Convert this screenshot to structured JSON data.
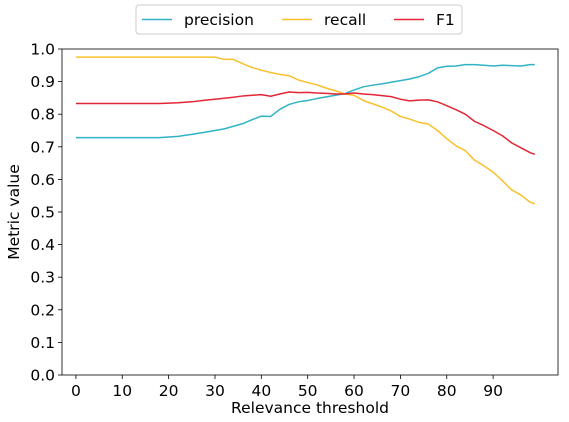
{
  "chart_data": {
    "type": "line",
    "title": "",
    "xlabel": "Relevance threshold",
    "ylabel": "Metric value",
    "xlim": [
      -3,
      104
    ],
    "ylim": [
      0.0,
      1.0
    ],
    "xticks": [
      0,
      10,
      20,
      30,
      40,
      50,
      60,
      70,
      80,
      90
    ],
    "xtick_labels": [
      "0",
      "10",
      "20",
      "30",
      "40",
      "50",
      "60",
      "70",
      "80",
      "90"
    ],
    "yticks": [
      0.0,
      0.1,
      0.2,
      0.3,
      0.4,
      0.5,
      0.6,
      0.7,
      0.8,
      0.9,
      1.0
    ],
    "ytick_labels": [
      "0.0",
      "0.1",
      "0.2",
      "0.3",
      "0.4",
      "0.5",
      "0.6",
      "0.7",
      "0.8",
      "0.9",
      "1.0"
    ],
    "grid": false,
    "legend_position": "top-center",
    "x": [
      0,
      5,
      10,
      15,
      18,
      20,
      22,
      25,
      28,
      30,
      32,
      34,
      36,
      38,
      40,
      42,
      44,
      46,
      48,
      50,
      52,
      54,
      56,
      58,
      60,
      62,
      64,
      66,
      68,
      70,
      72,
      74,
      76,
      78,
      80,
      82,
      84,
      86,
      88,
      90,
      92,
      94,
      96,
      98,
      99
    ],
    "series": [
      {
        "name": "precision",
        "color": "#30b3c6",
        "values": [
          0.728,
          0.728,
          0.728,
          0.728,
          0.728,
          0.73,
          0.732,
          0.738,
          0.745,
          0.75,
          0.755,
          0.763,
          0.771,
          0.783,
          0.794,
          0.793,
          0.815,
          0.83,
          0.838,
          0.842,
          0.848,
          0.853,
          0.858,
          0.863,
          0.874,
          0.884,
          0.889,
          0.893,
          0.898,
          0.903,
          0.908,
          0.915,
          0.925,
          0.942,
          0.947,
          0.948,
          0.952,
          0.952,
          0.95,
          0.948,
          0.95,
          0.949,
          0.948,
          0.952,
          0.952
        ]
      },
      {
        "name": "recall",
        "color": "#fbc02d",
        "values": [
          0.975,
          0.975,
          0.975,
          0.975,
          0.975,
          0.975,
          0.975,
          0.975,
          0.975,
          0.975,
          0.968,
          0.968,
          0.955,
          0.943,
          0.935,
          0.928,
          0.922,
          0.918,
          0.905,
          0.897,
          0.89,
          0.88,
          0.872,
          0.862,
          0.858,
          0.842,
          0.832,
          0.822,
          0.81,
          0.793,
          0.785,
          0.775,
          0.77,
          0.75,
          0.725,
          0.703,
          0.688,
          0.659,
          0.642,
          0.622,
          0.596,
          0.568,
          0.552,
          0.53,
          0.525
        ]
      },
      {
        "name": "F1",
        "color": "#e32636",
        "values": [
          0.833,
          0.833,
          0.833,
          0.833,
          0.833,
          0.834,
          0.835,
          0.838,
          0.843,
          0.846,
          0.849,
          0.852,
          0.856,
          0.858,
          0.86,
          0.855,
          0.862,
          0.868,
          0.866,
          0.867,
          0.865,
          0.864,
          0.862,
          0.862,
          0.865,
          0.862,
          0.86,
          0.857,
          0.854,
          0.846,
          0.841,
          0.843,
          0.844,
          0.838,
          0.826,
          0.814,
          0.8,
          0.778,
          0.765,
          0.75,
          0.734,
          0.712,
          0.697,
          0.682,
          0.677
        ]
      }
    ]
  }
}
